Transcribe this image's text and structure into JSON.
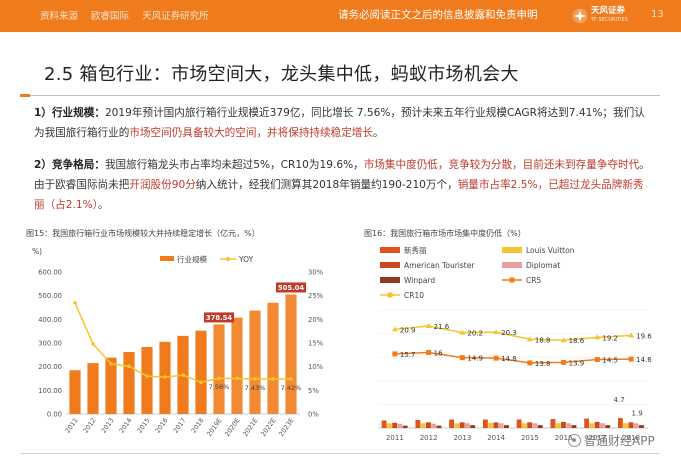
{
  "header": {
    "left_items": [
      "资料来源",
      "欧睿国际",
      "天风证券研究所"
    ],
    "disclaimer": "请务必阅读正文之后的信息披露和免责申明",
    "logo_cn": "天风证券",
    "logo_en": "TF SECURITIES",
    "page_number": "13"
  },
  "title": "2.5 箱包行业：市场空间大，龙头集中低，蚂蚁市场机会大",
  "para1": {
    "label": "1）行业规模：",
    "t1": "2019年预计国内旅行箱行业规模近379亿，同比增长 7.56%，预计未来五年行业规模CAGR将达到7.41%；我们认为我国旅行箱行业的",
    "h1": "市场空间仍具备较大的空间，并将保持持续稳定增长",
    "t2": "。"
  },
  "para2": {
    "label": "2）竞争格局：",
    "t1": "我国旅行箱龙头市占率均未超过5%，CR10为19.6%，",
    "h1": "市场集中度仍低，竞争较为分散，目前还未到存量争夺时代",
    "t2": "。由于欧睿国际尚未把",
    "h2": "开润股份90分",
    "t3": "纳入统计，经我们测算其2018年销量约190-210万个，",
    "h3": "销量市占率2.5%，已超过龙头品牌新秀丽（占2.1%）",
    "t4": "。"
  },
  "chart1_title": "图15：我国旅行箱行业市场规模较大并持续稳定增长（亿元，%）",
  "chart2_title": "图16：我国旅行箱市场市场集中度仍低（%）",
  "chart_data": [
    {
      "type": "bar",
      "title": "图15：我国旅行箱行业市场规模较大并持续稳定增长（亿元，%）",
      "categories": [
        "2011",
        "2012",
        "2013",
        "2014",
        "2015",
        "2016",
        "2017",
        "2018",
        "2019E",
        "2020E",
        "2021E",
        "2022E",
        "2023E"
      ],
      "series": [
        {
          "name": "行业规模",
          "axis": "left",
          "values": [
            185,
            215,
            238,
            262,
            283,
            305,
            330,
            352,
            378.54,
            407,
            437,
            470,
            505.04
          ],
          "color": "#f07b1d"
        },
        {
          "name": "YOY",
          "axis": "right",
          "type": "line",
          "values": [
            23.5,
            14.8,
            10.6,
            10.1,
            8.0,
            7.8,
            8.2,
            6.7,
            7.56,
            7.5,
            7.43,
            7.4,
            7.42
          ],
          "color": "#f5c431"
        }
      ],
      "ylim_left": [
        0,
        600
      ],
      "yticks_left": [
        "0.00",
        "50.00",
        "100.00",
        "150.00",
        "200.00",
        "250.00",
        "300.00",
        "350.00",
        "400.00",
        "450.00",
        "500.00",
        "550.00",
        "600.00"
      ],
      "ylim_right": [
        0,
        30
      ],
      "yticks_right": [
        "0%",
        "5%",
        "10%",
        "15%",
        "20%",
        "25%",
        "30%"
      ],
      "labels": {
        "bar_2019E": "378.54",
        "bar_2023E": "505.04",
        "yoy_2019E": "7.56%",
        "yoy_2021E": "7.43%",
        "yoy_2023E": "7.42%"
      }
    },
    {
      "type": "bar",
      "title": "图16：我国旅行箱市场市场集中度仍低（%）",
      "categories": [
        "2011",
        "2012",
        "2013",
        "2014",
        "2015",
        "2016",
        "2017",
        "2018"
      ],
      "series": [
        {
          "name": "新秀丽",
          "values": [
            1.6,
            1.7,
            1.8,
            1.8,
            1.8,
            1.9,
            2.0,
            2.1
          ],
          "color": "#e0541b"
        },
        {
          "name": "Louis Vuitton",
          "values": [
            1.0,
            1.0,
            1.0,
            1.1,
            1.0,
            1.0,
            1.0,
            1.0
          ],
          "color": "#f5c431"
        },
        {
          "name": "American Tourister",
          "values": [
            1.1,
            1.2,
            1.2,
            1.2,
            1.2,
            1.3,
            1.3,
            1.2
          ],
          "color": "#c94a20"
        },
        {
          "name": "Diplomat",
          "values": [
            0.9,
            0.9,
            1.0,
            1.0,
            1.0,
            1.0,
            1.0,
            1.0
          ],
          "color": "#e8a0a0"
        },
        {
          "name": "Winpard",
          "values": [
            0.5,
            0.5,
            0.6,
            0.6,
            0.6,
            0.6,
            0.6,
            0.6
          ],
          "color": "#8e3b1a"
        },
        {
          "name": "CR5",
          "type": "line",
          "values": [
            15.7,
            16,
            14.9,
            14.8,
            13.8,
            13.9,
            14.5,
            14.6
          ],
          "color": "#f07b1d"
        },
        {
          "name": "CR10",
          "type": "line",
          "values": [
            20.9,
            21.6,
            20.2,
            20.3,
            18.8,
            18.6,
            19.2,
            19.6
          ],
          "color": "#f5c431"
        }
      ],
      "extra_labels": {
        "2018_top": "4.7",
        "2018_second": "1.9"
      },
      "ylim": [
        0,
        25
      ]
    }
  ],
  "watermark": "智通财经APP"
}
